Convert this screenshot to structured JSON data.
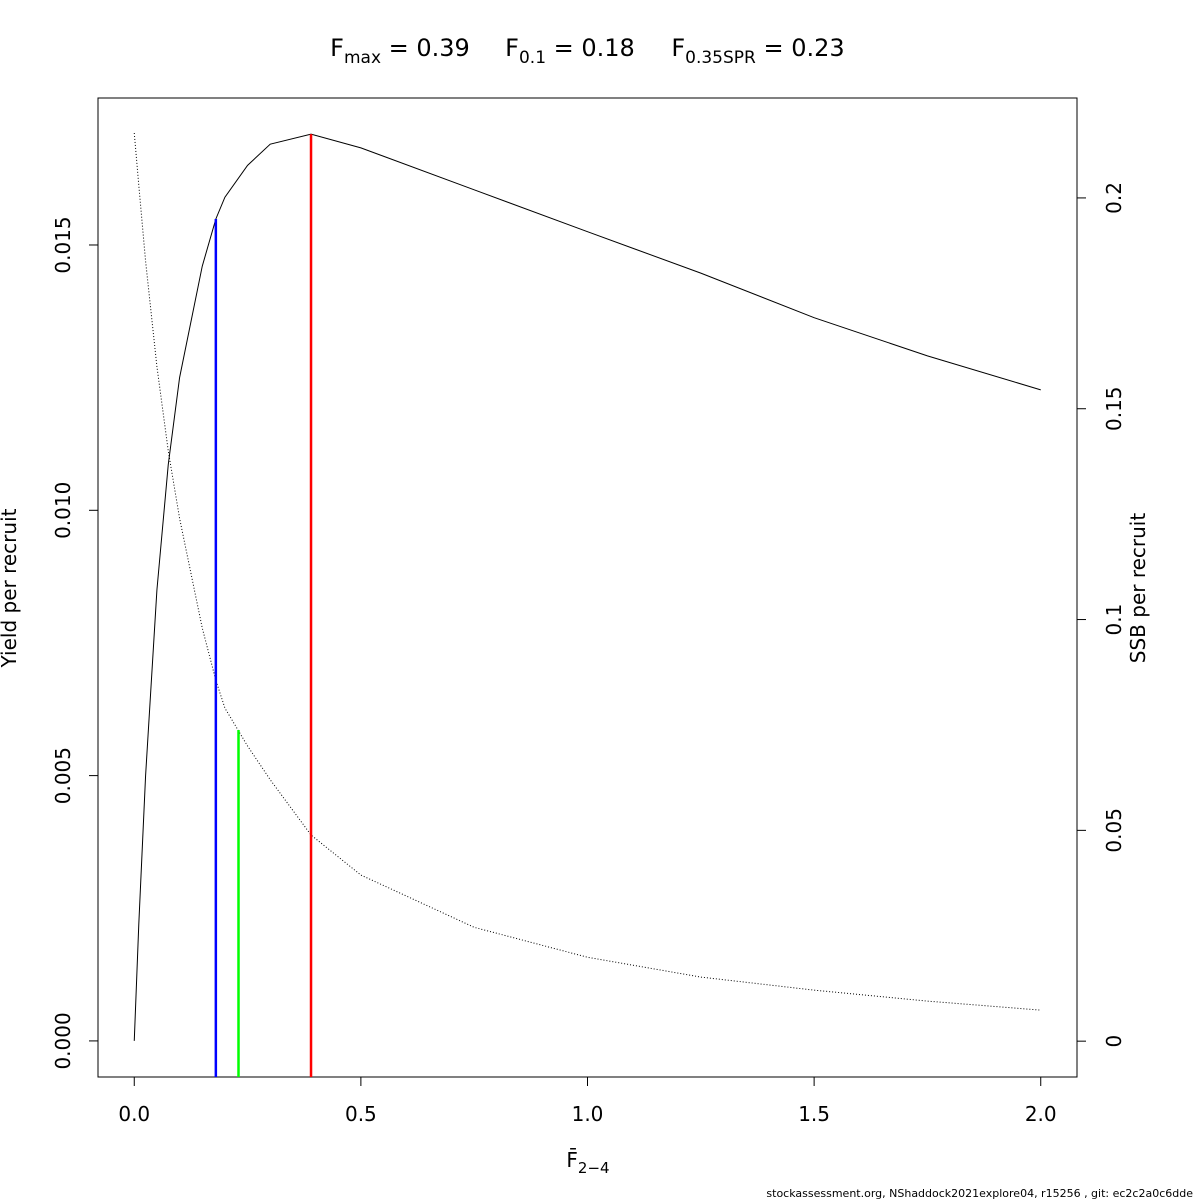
{
  "chart_data": {
    "type": "line",
    "title_parts": [
      {
        "main": "F",
        "sub": "max",
        "rest": " = 0.39"
      },
      {
        "main": "F",
        "sub": "0.1",
        "rest": " = 0.18"
      },
      {
        "main": "F",
        "sub": "0.35SPR",
        "rest": " = 0.23"
      }
    ],
    "xlabel": {
      "main": "F̄",
      "sub": "2−4"
    },
    "ylabel": "Yield per recruit",
    "y2label": "SSB per recruit",
    "footer": "stockassessment.org, NShaddock2021explore04, r15256 , git: ec2c2a0c6dde",
    "x": [
      0,
      0.01,
      0.025,
      0.05,
      0.075,
      0.1,
      0.15,
      0.18,
      0.2,
      0.25,
      0.3,
      0.39,
      0.5,
      0.75,
      1.0,
      1.25,
      1.5,
      1.75,
      2.0
    ],
    "series": [
      {
        "name": "Yield per recruit",
        "color": "#000000",
        "dash": "solid",
        "axis": "y",
        "values": [
          0,
          0.0022,
          0.005,
          0.0085,
          0.01086,
          0.0125,
          0.0146,
          0.01549,
          0.0159,
          0.0165,
          0.0169,
          0.01709,
          0.01683,
          0.01604,
          0.01525,
          0.01447,
          0.01363,
          0.01291,
          0.01227
        ]
      },
      {
        "name": "SSB per recruit",
        "color": "#000000",
        "dash": "dotted",
        "axis": "y2",
        "values": [
          0.2154,
          0.203,
          0.185,
          0.16,
          0.14,
          0.124,
          0.098,
          0.0856,
          0.079,
          0.07,
          0.062,
          0.0489,
          0.0394,
          0.027,
          0.0199,
          0.0152,
          0.0121,
          0.0095,
          0.00736
        ]
      }
    ],
    "reference_lines": [
      {
        "x": 0.18,
        "top": 0.01549,
        "axis": "y",
        "color": "#0000ff"
      },
      {
        "x": 0.23,
        "top": 0.0738,
        "axis": "y2",
        "color": "#00ff00"
      },
      {
        "x": 0.39,
        "top": 0.01709,
        "axis": "y",
        "color": "#ff0000"
      }
    ],
    "xlim": [
      -0.08,
      2.08
    ],
    "ylim": [
      -0.00068,
      0.01777
    ],
    "y2lim": [
      -0.0085,
      0.2237
    ],
    "xticks": [
      {
        "value": 0,
        "label": "0.0"
      },
      0.5,
      {
        "value": 1,
        "label": "1.0"
      },
      1.5,
      {
        "value": 2,
        "label": "2.0"
      }
    ],
    "yticks": [
      {
        "value": 0,
        "label": "0.000"
      },
      {
        "value": 0.005,
        "label": "0.005"
      },
      {
        "value": 0.01,
        "label": "0.010"
      },
      {
        "value": 0.015,
        "label": "0.015"
      }
    ],
    "y2ticks": [
      0,
      0.05,
      0.1,
      0.15,
      0.2
    ]
  }
}
